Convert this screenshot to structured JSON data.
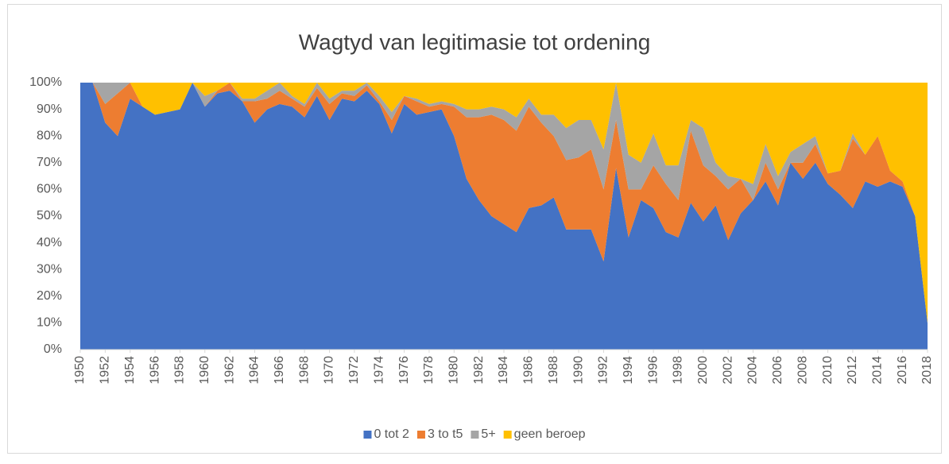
{
  "chart_data": {
    "type": "stacked-area-100",
    "title": "Wagtyd van legitimasie tot ordening",
    "x": [
      1950,
      1951,
      1952,
      1953,
      1954,
      1955,
      1956,
      1957,
      1958,
      1959,
      1960,
      1961,
      1962,
      1963,
      1964,
      1965,
      1966,
      1967,
      1968,
      1969,
      1970,
      1971,
      1972,
      1973,
      1974,
      1975,
      1976,
      1977,
      1978,
      1979,
      1980,
      1981,
      1982,
      1983,
      1984,
      1985,
      1986,
      1987,
      1988,
      1989,
      1990,
      1991,
      1992,
      1993,
      1994,
      1995,
      1996,
      1997,
      1998,
      1999,
      2000,
      2001,
      2002,
      2003,
      2004,
      2005,
      2006,
      2007,
      2008,
      2009,
      2010,
      2011,
      2012,
      2013,
      2014,
      2015,
      2016,
      2017,
      2018
    ],
    "xlim": [
      1950,
      2018
    ],
    "xticks": [
      1950,
      1952,
      1954,
      1956,
      1958,
      1960,
      1962,
      1964,
      1966,
      1968,
      1970,
      1972,
      1974,
      1976,
      1978,
      1980,
      1982,
      1984,
      1986,
      1988,
      1990,
      1992,
      1994,
      1996,
      1998,
      2000,
      2002,
      2004,
      2006,
      2008,
      2010,
      2012,
      2014,
      2016,
      2018
    ],
    "ylim": [
      0,
      100
    ],
    "yticks": [
      {
        "value": 0,
        "label": "0%"
      },
      {
        "value": 10,
        "label": "10%"
      },
      {
        "value": 20,
        "label": "20%"
      },
      {
        "value": 30,
        "label": "30%"
      },
      {
        "value": 40,
        "label": "40%"
      },
      {
        "value": 50,
        "label": "50%"
      },
      {
        "value": 60,
        "label": "60%"
      },
      {
        "value": 70,
        "label": "70%"
      },
      {
        "value": 80,
        "label": "80%"
      },
      {
        "value": 90,
        "label": "90%"
      },
      {
        "value": 100,
        "label": "100%"
      }
    ],
    "legend": "bottom",
    "series": [
      {
        "name": "0 tot 2",
        "color": "#4472c4",
        "values": [
          100,
          100,
          85,
          80,
          94,
          91,
          88,
          89,
          90,
          100,
          91,
          96,
          97,
          93,
          85,
          90,
          92,
          91,
          87,
          95,
          86,
          94,
          93,
          97,
          92,
          81,
          92,
          88,
          89,
          90,
          80,
          64,
          56,
          50,
          47,
          44,
          53,
          54,
          57,
          45,
          45,
          45,
          33,
          68,
          42,
          56,
          53,
          44,
          42,
          55,
          48,
          54,
          41,
          51,
          56,
          63,
          54,
          70,
          64,
          70,
          62,
          58,
          53,
          63,
          61,
          63,
          61,
          50,
          10
        ]
      },
      {
        "name": "3 to t5",
        "color": "#ed7d31",
        "values": [
          0,
          0,
          7,
          16,
          6,
          0,
          0,
          0,
          0,
          0,
          0,
          1,
          3,
          0,
          8,
          4,
          5,
          3,
          4,
          3,
          6,
          2,
          2,
          2,
          1,
          5,
          3,
          5,
          2,
          2,
          11,
          23,
          31,
          38,
          39,
          38,
          38,
          31,
          23,
          26,
          27,
          30,
          27,
          18,
          18,
          4,
          16,
          18,
          14,
          27,
          21,
          11,
          19,
          13,
          0,
          7,
          6,
          0,
          6,
          7,
          4,
          9,
          26,
          10,
          19,
          4,
          2,
          0,
          0
        ]
      },
      {
        "name": "5+",
        "color": "#a5a5a5",
        "values": [
          0,
          0,
          8,
          4,
          0,
          0,
          0,
          0,
          0,
          0,
          4,
          0,
          0,
          1,
          1,
          3,
          3,
          1,
          1,
          2,
          2,
          1,
          2,
          1,
          2,
          3,
          0,
          1,
          1,
          1,
          1,
          3,
          3,
          3,
          4,
          5,
          3,
          3,
          8,
          12,
          14,
          11,
          15,
          14,
          13,
          10,
          12,
          7,
          13,
          4,
          14,
          5,
          5,
          0,
          6,
          7,
          5,
          4,
          7,
          3,
          0,
          0,
          2,
          0,
          0,
          0,
          0,
          0,
          0
        ]
      },
      {
        "name": "geen beroep",
        "color": "#ffc000",
        "values": [
          0,
          0,
          0,
          0,
          0,
          9,
          12,
          11,
          10,
          0,
          5,
          3,
          0,
          6,
          6,
          3,
          0,
          5,
          8,
          0,
          6,
          3,
          3,
          0,
          5,
          11,
          5,
          6,
          8,
          7,
          8,
          10,
          10,
          9,
          10,
          13,
          6,
          12,
          12,
          17,
          14,
          14,
          25,
          0,
          27,
          30,
          19,
          31,
          31,
          14,
          17,
          30,
          35,
          36,
          38,
          23,
          35,
          26,
          23,
          20,
          34,
          33,
          19,
          27,
          20,
          33,
          37,
          50,
          90
        ]
      }
    ]
  }
}
